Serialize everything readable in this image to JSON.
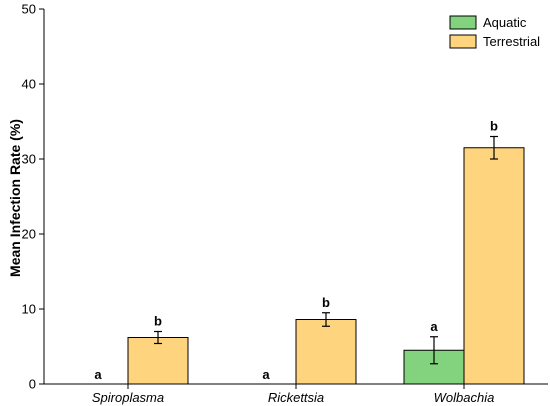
{
  "chart_data": {
    "type": "bar",
    "title": "",
    "xlabel": "",
    "ylabel": "Mean Infection Rate (%)",
    "ylim": [
      0,
      50
    ],
    "yticks": [
      0,
      10,
      20,
      30,
      40,
      50
    ],
    "grid": false,
    "legend_position": "top-right",
    "categories": [
      "Spiroplasma",
      "Rickettsia",
      "Wolbachia"
    ],
    "series": [
      {
        "name": "Aquatic",
        "color": "#82d27e",
        "values": [
          0,
          0,
          4.5
        ],
        "errors": [
          0,
          0,
          1.8
        ],
        "labels": [
          "a",
          "a",
          "a"
        ]
      },
      {
        "name": "Terrestrial",
        "color": "#fed47f",
        "values": [
          6.2,
          8.6,
          31.5
        ],
        "errors": [
          0.8,
          0.9,
          1.5
        ],
        "labels": [
          "b",
          "b",
          "b"
        ]
      }
    ]
  }
}
